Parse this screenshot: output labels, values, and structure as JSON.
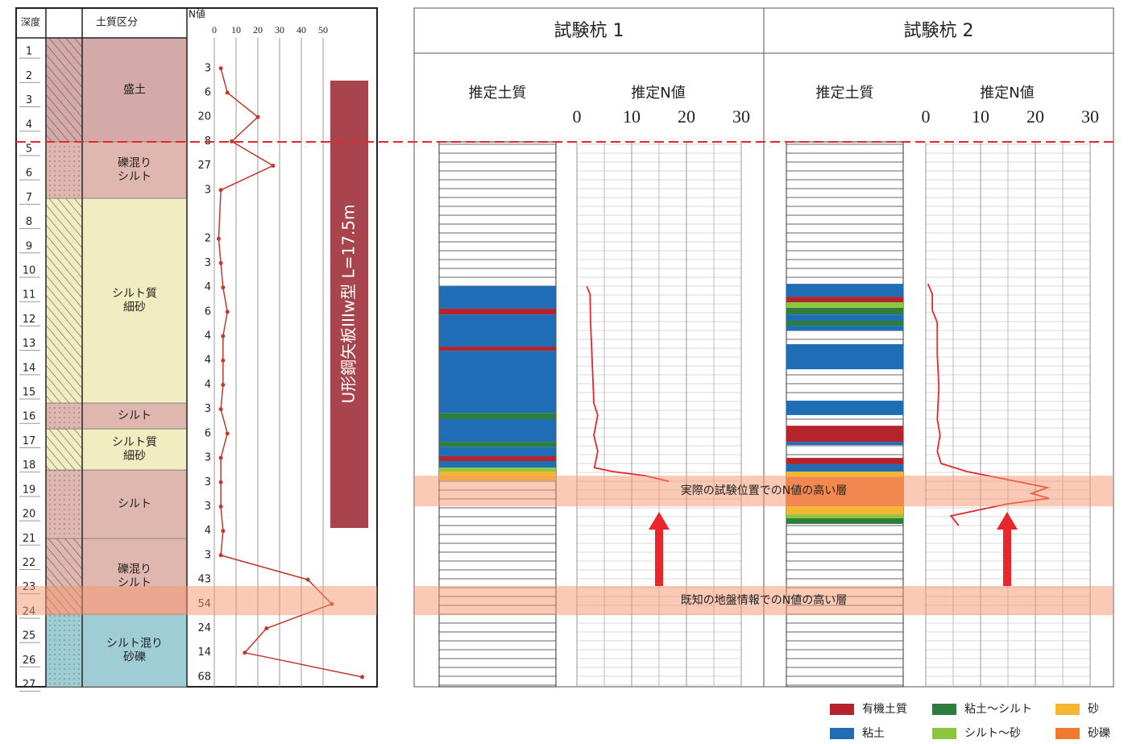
{
  "boring_log": {
    "headers": {
      "depth": "深度",
      "soil": "土質区分",
      "n": "N値"
    },
    "ylim": [
      0.3,
      26.95
    ],
    "depth_ticks": [
      1,
      2,
      3,
      4,
      5,
      6,
      7,
      8,
      9,
      10,
      11,
      12,
      13,
      14,
      15,
      16,
      17,
      18,
      19,
      20,
      21,
      22,
      23,
      24,
      25,
      26,
      27
    ],
    "layers": [
      {
        "name": [
          "盛土"
        ],
        "top": 0.3,
        "bottom": 4.57,
        "color": "#d4aaa8"
      },
      {
        "name": [
          "礫混り",
          "シルト"
        ],
        "top": 4.57,
        "bottom": 6.89,
        "color": "#dfb7ae"
      },
      {
        "name": [
          "シルト質",
          "細砂"
        ],
        "top": 6.89,
        "bottom": 15.3,
        "color": "#f2edc0"
      },
      {
        "name": [
          "シルト"
        ],
        "top": 15.3,
        "bottom": 16.36,
        "color": "#dfb7ae"
      },
      {
        "name": [
          "シルト質",
          "細砂"
        ],
        "top": 16.36,
        "bottom": 18.05,
        "color": "#f2edc0"
      },
      {
        "name": [
          "シルト"
        ],
        "top": 18.05,
        "bottom": 20.86,
        "color": "#dfb7ae"
      },
      {
        "name": [
          "礫混り",
          "シルト"
        ],
        "top": 20.86,
        "bottom": 23.97,
        "color": "#dfb7ae"
      },
      {
        "name": [
          "シルト混り",
          "砂礫"
        ],
        "top": 23.97,
        "bottom": 26.95,
        "color": "#9fcdd6"
      }
    ],
    "n_xlim": [
      0,
      50
    ],
    "n_xticks": [
      0,
      10,
      20,
      30,
      40,
      50
    ],
    "n_depths": [
      1.55,
      2.55,
      3.55,
      4.55,
      5.55,
      6.55,
      8.55,
      9.55,
      10.55,
      11.55,
      12.55,
      13.55,
      14.55,
      15.55,
      16.55,
      17.55,
      18.55,
      19.55,
      20.55,
      21.55,
      22.55,
      23.55,
      24.55,
      25.55,
      26.55
    ],
    "n_values": [
      3,
      6,
      20,
      8,
      27,
      3,
      2,
      3,
      4,
      6,
      4,
      4,
      4,
      3,
      6,
      3,
      3,
      3,
      4,
      3,
      43,
      54,
      24,
      14,
      68
    ],
    "color": "#c0392b",
    "pile_label": "U形鋼矢板IIIw型 L=17.5m"
  },
  "test_piles": {
    "ylim": [
      4.57,
      26.95
    ],
    "soil_header": "推定土質",
    "n_header": "推定N値",
    "xlim": [
      0,
      30
    ],
    "xticks": [
      0,
      10,
      20,
      30
    ],
    "xminorticks": [
      5,
      15,
      25
    ],
    "piles": [
      {
        "name": "試験杭 1",
        "layers": [
          {
            "top": 10.5,
            "bottom": 11.42,
            "class": 1
          },
          {
            "top": 11.42,
            "bottom": 11.66,
            "class": 0
          },
          {
            "top": 11.66,
            "bottom": 12.98,
            "class": 1
          },
          {
            "top": 12.98,
            "bottom": 13.15,
            "class": 0
          },
          {
            "top": 13.15,
            "bottom": 15.7,
            "class": 1
          },
          {
            "top": 15.7,
            "bottom": 15.96,
            "class": 2
          },
          {
            "top": 15.96,
            "bottom": 16.89,
            "class": 1
          },
          {
            "top": 16.89,
            "bottom": 17.09,
            "class": 2
          },
          {
            "top": 17.09,
            "bottom": 17.48,
            "class": 1
          },
          {
            "top": 17.48,
            "bottom": 17.68,
            "class": 0
          },
          {
            "top": 17.68,
            "bottom": 17.95,
            "class": 1
          },
          {
            "top": 17.95,
            "bottom": 18.11,
            "class": 3
          },
          {
            "top": 18.11,
            "bottom": 18.48,
            "class": 4
          }
        ],
        "n_depths": [
          10.5,
          10.83,
          12.0,
          13.64,
          15.3,
          15.8,
          16.62,
          17.28,
          17.95,
          18.11,
          18.28,
          18.51
        ],
        "n_values": [
          1.8,
          2.4,
          2.5,
          2.8,
          3.1,
          3.8,
          3.1,
          3.8,
          3.2,
          6.5,
          12.4,
          16.8
        ]
      },
      {
        "name": "試験杭 2",
        "layers": [
          {
            "top": 10.4,
            "bottom": 10.93,
            "class": 1
          },
          {
            "top": 10.93,
            "bottom": 11.16,
            "class": 0
          },
          {
            "top": 11.16,
            "bottom": 11.39,
            "class": 3
          },
          {
            "top": 11.39,
            "bottom": 11.66,
            "class": 2
          },
          {
            "top": 11.66,
            "bottom": 11.92,
            "class": 1
          },
          {
            "top": 11.92,
            "bottom": 12.12,
            "class": 2
          },
          {
            "top": 12.12,
            "bottom": 12.32,
            "class": 1
          },
          {
            "top": 12.88,
            "bottom": 13.91,
            "class": 1
          },
          {
            "top": 15.2,
            "bottom": 15.79,
            "class": 1
          },
          {
            "top": 16.23,
            "bottom": 16.89,
            "class": 0
          },
          {
            "top": 16.89,
            "bottom": 17.02,
            "class": 1
          },
          {
            "top": 17.55,
            "bottom": 17.81,
            "class": 0
          },
          {
            "top": 17.81,
            "bottom": 18.11,
            "class": 1
          },
          {
            "top": 18.11,
            "bottom": 18.34,
            "class": 4
          },
          {
            "top": 18.34,
            "bottom": 19.54,
            "class": 5
          },
          {
            "top": 19.54,
            "bottom": 19.87,
            "class": 4
          },
          {
            "top": 19.87,
            "bottom": 20.03,
            "class": 3
          },
          {
            "top": 20.03,
            "bottom": 20.26,
            "class": 2
          }
        ],
        "n_depths": [
          10.4,
          10.83,
          11.49,
          11.99,
          13.31,
          14.64,
          15.96,
          16.62,
          17.28,
          17.78,
          18.11,
          18.44,
          18.77,
          19.01,
          19.21,
          19.44,
          19.93,
          20.33
        ],
        "n_values": [
          0.4,
          1.2,
          1.2,
          2.1,
          2.1,
          2.4,
          2.1,
          2.6,
          2.1,
          2.8,
          7.5,
          14.9,
          22.2,
          19.3,
          22.5,
          14.9,
          4.6,
          6.0
        ]
      }
    ],
    "n_color": "#e8262b"
  },
  "annotations": [
    {
      "text": "実際の試験位置でのN値の高い層",
      "top": 18.28,
      "bottom": 19.54
    },
    {
      "text": "既知の地盤情報でのN値の高い層",
      "top": 22.81,
      "bottom": 24.01
    }
  ],
  "legend": [
    {
      "name": "有機土質",
      "color": "#b5232c"
    },
    {
      "name": "粘土",
      "color": "#1f6db5"
    },
    {
      "name": "粘土～シルト",
      "color": "#2e7d3c"
    },
    {
      "name": "シルト～砂",
      "color": "#8cc63f"
    },
    {
      "name": "砂",
      "color": "#f5b731"
    },
    {
      "name": "砂礫",
      "color": "#ef7a30"
    }
  ]
}
